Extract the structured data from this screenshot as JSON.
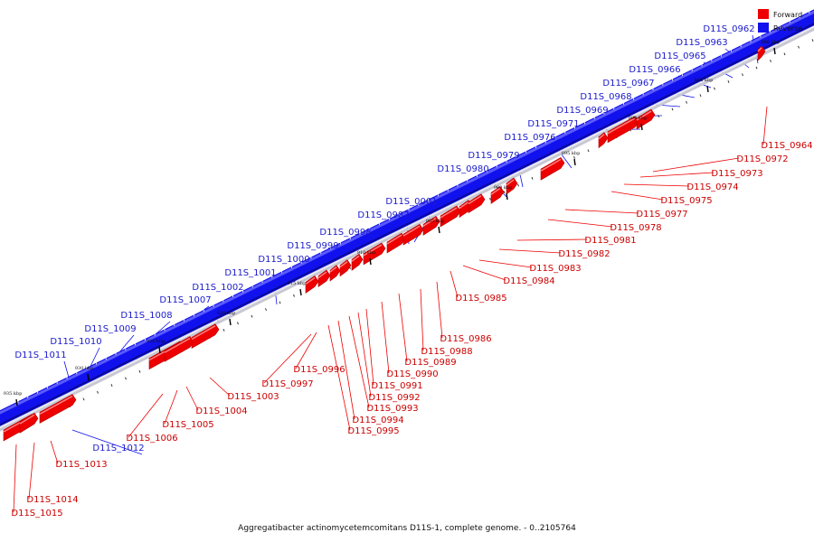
{
  "title": "Aggregatibacter actinomycetemcomitans D11S-1, complete genome. - 0..2105764",
  "colors": {
    "forward": "#ee0000",
    "reverse": "#1111ee",
    "forward_label": "#cc0000",
    "reverse_label": "#1a1acc"
  },
  "legend": [
    {
      "name": "Forward",
      "color": "#ee0000"
    },
    {
      "name": "Reverse",
      "color": "#1111ee"
    }
  ],
  "kbp_marks": [
    "880 kbp",
    "885 kbp",
    "890 kbp",
    "895 kbp",
    "900 kbp",
    "905 kbp",
    "910 kbp",
    "915 kbp",
    "920 kbp",
    "925 kbp",
    "930 kbp",
    "935 kbp"
  ],
  "forward_genes": [
    "D11S_0964",
    "D11S_0972",
    "D11S_0973",
    "D11S_0974",
    "D11S_0975",
    "D11S_0977",
    "D11S_0978",
    "D11S_0981",
    "D11S_0982",
    "D11S_0983",
    "D11S_0984",
    "D11S_0985",
    "D11S_0986",
    "D11S_0988",
    "D11S_0989",
    "D11S_0990",
    "D11S_0991",
    "D11S_0992",
    "D11S_0993",
    "D11S_0994",
    "D11S_0995",
    "D11S_0996",
    "D11S_0997",
    "D11S_1003",
    "D11S_1004",
    "D11S_1005",
    "D11S_1006",
    "D11S_1013",
    "D11S_1014",
    "D11S_1015"
  ],
  "reverse_genes": [
    "D11S_0962",
    "D11S_0963",
    "D11S_0965",
    "D11S_0966",
    "D11S_0967",
    "D11S_0968",
    "D11S_0969",
    "D11S_0971",
    "D11S_0976",
    "D11S_0979",
    "D11S_0980",
    "D11S_0001",
    "D11S_0987",
    "D11S_0998",
    "D11S_0999",
    "D11S_1000",
    "D11S_1001",
    "D11S_1002",
    "D11S_1007",
    "D11S_1008",
    "D11S_1009",
    "D11S_1010",
    "D11S_1011",
    "D11S_1012"
  ]
}
